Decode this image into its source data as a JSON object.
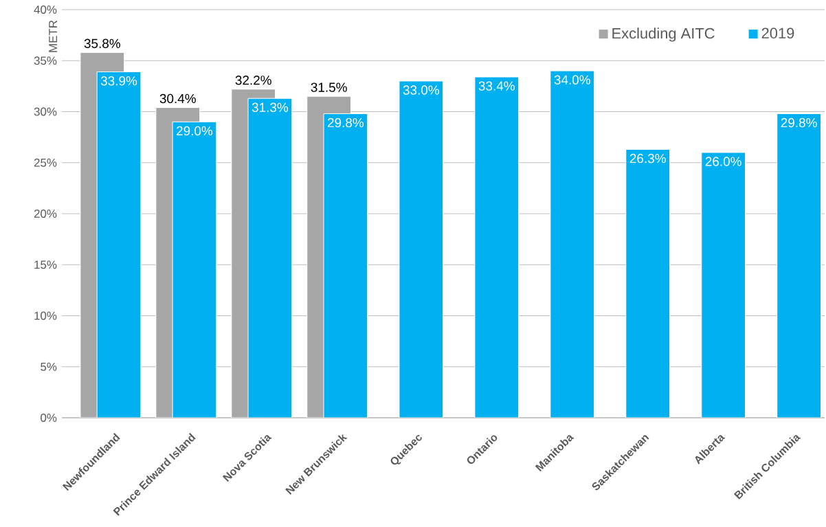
{
  "chart_data": {
    "type": "bar",
    "ylabel": "METR",
    "categories": [
      "Newfoundland",
      "Prince Edward Island",
      "Nova Scotia",
      "New Brunswick",
      "Quebec",
      "Ontario",
      "Manitoba",
      "Saskatchewan",
      "Alberta",
      "British Columbia"
    ],
    "series": [
      {
        "name": "Excluding AITC",
        "color": "#a6a6a6",
        "values": [
          35.8,
          30.4,
          32.2,
          31.5,
          null,
          null,
          null,
          null,
          null,
          null
        ],
        "value_labels": [
          "35.8%",
          "30.4%",
          "32.2%",
          "31.5%",
          null,
          null,
          null,
          null,
          null,
          null
        ]
      },
      {
        "name": "2019",
        "color": "#00b0f0",
        "values": [
          33.9,
          29.0,
          31.3,
          29.8,
          33.0,
          33.4,
          34.0,
          26.3,
          26.0,
          29.8
        ],
        "value_labels": [
          "33.9%",
          "29.0%",
          "31.3%",
          "29.8%",
          "33.0%",
          "33.4%",
          "34.0%",
          "26.3%",
          "26.0%",
          "29.8%"
        ]
      }
    ],
    "ylim": [
      0,
      40
    ],
    "yticks": [
      {
        "value": 0,
        "label": "0%"
      },
      {
        "value": 5,
        "label": "5%"
      },
      {
        "value": 10,
        "label": "10%"
      },
      {
        "value": 15,
        "label": "15%"
      },
      {
        "value": 20,
        "label": "20%"
      },
      {
        "value": 25,
        "label": "25%"
      },
      {
        "value": 30,
        "label": "30%"
      },
      {
        "value": 35,
        "label": "35%"
      },
      {
        "value": 40,
        "label": "40%"
      }
    ],
    "grid": "y",
    "legend": "top right"
  }
}
